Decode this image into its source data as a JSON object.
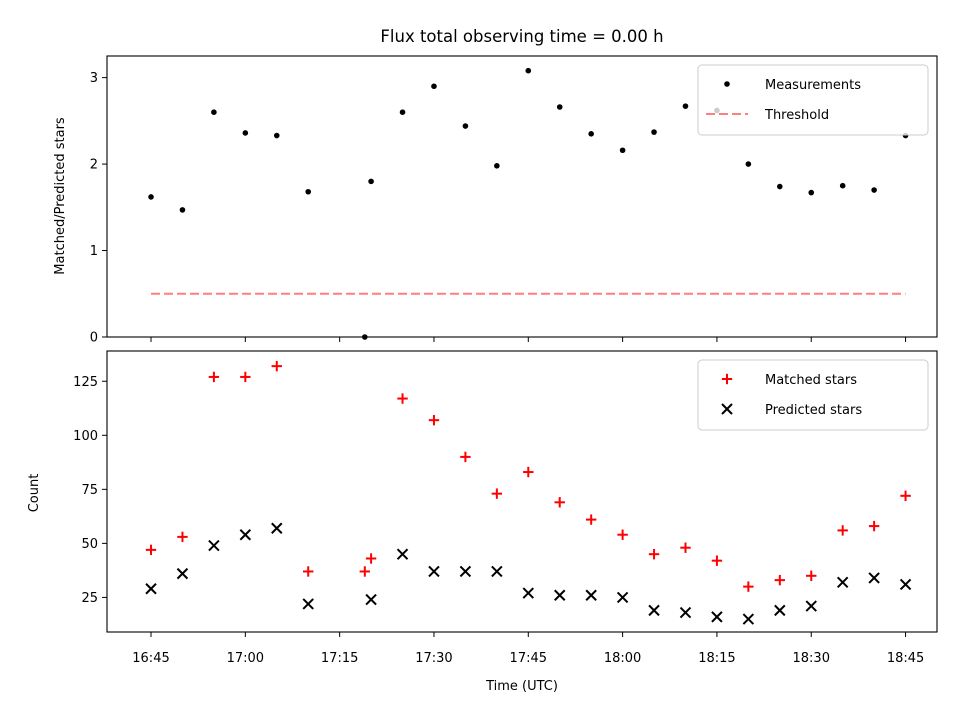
{
  "chart_data": [
    {
      "type": "scatter",
      "title": "Flux total observing time = 0.00 h",
      "xlabel": "",
      "ylabel": "Matched/Predicted stars",
      "ylim": [
        0,
        3.25
      ],
      "yticks": [
        0,
        1,
        2,
        3
      ],
      "legend_position": "upper right",
      "series": [
        {
          "name": "Measurements",
          "marker": "dot",
          "color": "#000000",
          "x": [
            "16:45",
            "16:50",
            "16:55",
            "17:00",
            "17:05",
            "17:10",
            "17:19",
            "17:20",
            "17:25",
            "17:30",
            "17:35",
            "17:40",
            "17:45",
            "17:50",
            "17:55",
            "18:00",
            "18:05",
            "18:10",
            "18:15",
            "18:20",
            "18:25",
            "18:30",
            "18:35",
            "18:40",
            "18:45"
          ],
          "values": [
            1.62,
            1.47,
            2.6,
            2.36,
            2.33,
            1.68,
            0.0,
            1.8,
            2.6,
            2.9,
            2.44,
            1.98,
            3.08,
            2.66,
            2.35,
            2.16,
            2.37,
            2.67,
            2.62,
            2.0,
            1.74,
            1.67,
            1.75,
            1.7,
            2.33
          ]
        },
        {
          "name": "Threshold",
          "style": "dashed",
          "color": "#ff7f7f",
          "x": [
            "16:45",
            "18:45"
          ],
          "values": [
            0.5,
            0.5
          ]
        }
      ]
    },
    {
      "type": "scatter",
      "title": "",
      "xlabel": "Time (UTC)",
      "ylabel": "Count",
      "ylim": [
        9,
        139
      ],
      "yticks": [
        25,
        50,
        75,
        100,
        125
      ],
      "xticks": [
        "16:45",
        "17:00",
        "17:15",
        "17:30",
        "17:45",
        "18:00",
        "18:15",
        "18:30",
        "18:45"
      ],
      "xlim_minutes_after_1645": [
        -7,
        125
      ],
      "legend_position": "upper right",
      "series": [
        {
          "name": "Matched stars",
          "marker": "plus",
          "color": "#ff0000",
          "x": [
            "16:45",
            "16:50",
            "16:55",
            "17:00",
            "17:05",
            "17:10",
            "17:19",
            "17:20",
            "17:25",
            "17:30",
            "17:35",
            "17:40",
            "17:45",
            "17:50",
            "17:55",
            "18:00",
            "18:05",
            "18:10",
            "18:15",
            "18:20",
            "18:25",
            "18:30",
            "18:35",
            "18:40",
            "18:45"
          ],
          "values": [
            47,
            53,
            127,
            127,
            132,
            37,
            37,
            43,
            117,
            107,
            90,
            73,
            83,
            69,
            61,
            54,
            45,
            48,
            42,
            30,
            33,
            35,
            56,
            58,
            72
          ]
        },
        {
          "name": "Predicted stars",
          "marker": "x",
          "color": "#000000",
          "x": [
            "16:45",
            "16:50",
            "16:55",
            "17:00",
            "17:05",
            "17:10",
            "17:20",
            "17:25",
            "17:30",
            "17:35",
            "17:40",
            "17:45",
            "17:50",
            "17:55",
            "18:00",
            "18:05",
            "18:10",
            "18:15",
            "18:20",
            "18:25",
            "18:30",
            "18:35",
            "18:40",
            "18:45"
          ],
          "values": [
            29,
            36,
            49,
            54,
            57,
            22,
            24,
            45,
            37,
            37,
            37,
            27,
            26,
            26,
            25,
            19,
            18,
            16,
            15,
            19,
            21,
            32,
            34,
            31
          ]
        }
      ]
    }
  ]
}
